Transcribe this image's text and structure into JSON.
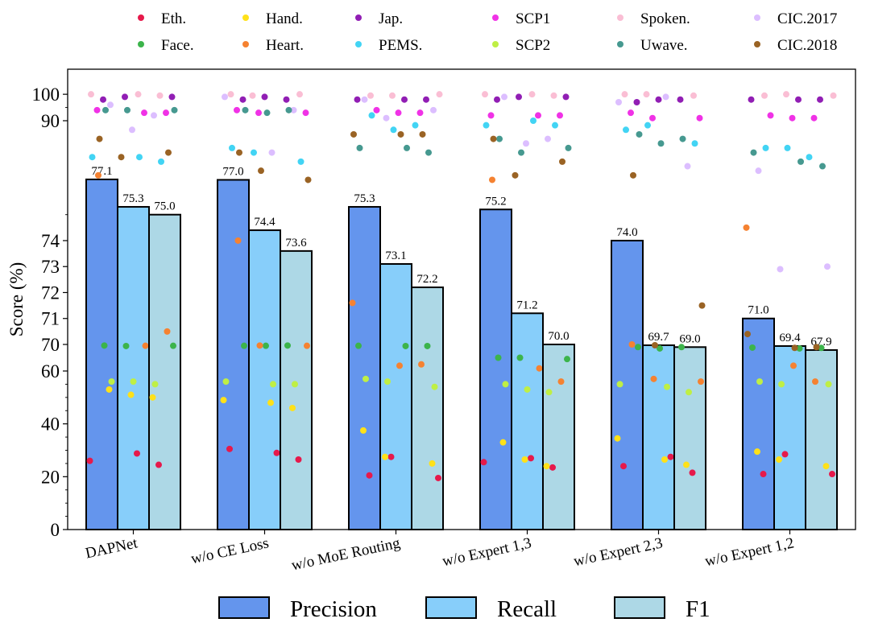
{
  "chart_data": {
    "type": "bar",
    "ylabel": "Score (%)",
    "xlabel": "",
    "title": "",
    "y_segments": [
      {
        "range": [
          0,
          60
        ],
        "ticks": [
          0,
          20,
          40,
          60
        ]
      },
      {
        "range": [
          60,
          70
        ],
        "ticks": []
      },
      {
        "range": [
          70,
          76.2
        ],
        "ticks": [
          70,
          71,
          72,
          73,
          74
        ]
      },
      {
        "range": [
          76.2,
          90
        ],
        "ticks": []
      },
      {
        "range": [
          90,
          104
        ],
        "ticks": [
          90,
          100
        ]
      }
    ],
    "categories": [
      "DAPNet",
      "w/o CE Loss",
      "w/o MoE Routing",
      "w/o Expert 1,3",
      "w/o Expert 2,3",
      "w/o Expert 1,2"
    ],
    "series": [
      {
        "name": "Precision",
        "color": "#6495ed",
        "values": [
          77.1,
          77.0,
          75.3,
          75.2,
          74.0,
          71.0
        ],
        "labels": [
          "77.1",
          "77.0",
          "75.3",
          "75.2",
          "74.0",
          "71.0"
        ]
      },
      {
        "name": "Recall",
        "color": "#87cefa",
        "values": [
          75.3,
          74.4,
          73.1,
          71.2,
          69.7,
          69.4
        ],
        "labels": [
          "75.3",
          "74.4",
          "73.1",
          "71.2",
          "69.7",
          "69.4"
        ]
      },
      {
        "name": "F1",
        "color": "#add8e6",
        "values": [
          75.0,
          73.6,
          72.2,
          70.0,
          69.0,
          67.9
        ],
        "labels": [
          "75.0",
          "73.6",
          "72.2",
          "70.0",
          "69.0",
          "67.9"
        ]
      }
    ],
    "dataset_legend": [
      {
        "name": "Eth.",
        "color": "#e6194b"
      },
      {
        "name": "Hand.",
        "color": "#ffe119"
      },
      {
        "name": "Jap.",
        "color": "#911eb4"
      },
      {
        "name": "SCP1",
        "color": "#f032e6"
      },
      {
        "name": "Spoken.",
        "color": "#fabed4"
      },
      {
        "name": "CIC.2017",
        "color": "#dcbeff"
      },
      {
        "name": "Face.",
        "color": "#3cb44b"
      },
      {
        "name": "Heart.",
        "color": "#f58231"
      },
      {
        "name": "PEMS.",
        "color": "#42d4f4"
      },
      {
        "name": "SCP2",
        "color": "#bfef45"
      },
      {
        "name": "Uwave.",
        "color": "#469990"
      },
      {
        "name": "CIC.2018",
        "color": "#9a6324"
      }
    ],
    "dataset_points": {
      "order": [
        "Eth.",
        "Hand.",
        "Jap.",
        "SCP1",
        "Spoken.",
        "CIC.2017",
        "Face.",
        "Heart.",
        "PEMS.",
        "SCP2",
        "Uwave.",
        "CIC.2018"
      ],
      "values": [
        [
          [
            26,
            53,
            98,
            94,
            100,
            96,
            69.6,
            78,
            82,
            56,
            94,
            86
          ],
          [
            28.8,
            51,
            99,
            93,
            100,
            88,
            69.4,
            69.5,
            82,
            56,
            94,
            82
          ],
          [
            24.5,
            50,
            99,
            93,
            99.5,
            92,
            69.5,
            70.5,
            81,
            55,
            94,
            83
          ]
        ],
        [
          [
            30.5,
            49,
            98,
            94,
            100,
            99,
            69.5,
            74,
            84,
            56,
            94,
            83
          ],
          [
            29,
            48,
            99,
            93,
            99.5,
            83,
            69.5,
            69.6,
            83,
            55,
            93,
            79
          ],
          [
            26.5,
            46,
            98,
            93,
            100,
            94,
            69.6,
            69.5,
            81,
            55,
            94,
            77
          ]
        ],
        [
          [
            20.5,
            37.5,
            98,
            94,
            99.5,
            98,
            69.5,
            71.6,
            92,
            57,
            84,
            87
          ],
          [
            27.5,
            27.5,
            98,
            93,
            99.5,
            91,
            69.4,
            62,
            88,
            56,
            84,
            87
          ],
          [
            19.5,
            25,
            98,
            93,
            100,
            94,
            69.4,
            62.5,
            89,
            54,
            83,
            87
          ]
        ],
        [
          [
            25.5,
            33,
            98,
            92,
            100,
            99,
            65,
            77,
            89,
            55,
            86,
            86
          ],
          [
            27,
            26.5,
            99,
            92,
            100,
            85,
            65,
            61,
            90,
            53,
            83,
            78
          ],
          [
            23.5,
            24,
            99,
            92,
            99.5,
            86,
            64.5,
            56,
            89,
            52,
            84,
            81
          ]
        ],
        [
          [
            24,
            34.5,
            97,
            93,
            100,
            97,
            69,
            70,
            88,
            55,
            87,
            78
          ],
          [
            27.5,
            26.5,
            98,
            91,
            100,
            99,
            68.5,
            57,
            89,
            54,
            85,
            69.7
          ],
          [
            21.5,
            24.5,
            98,
            91,
            99.5,
            80,
            69,
            56,
            85,
            52,
            86,
            71.5
          ]
        ],
        [
          [
            21,
            29.5,
            98,
            92,
            99.5,
            79,
            68.8,
            74.5,
            84,
            56,
            83,
            70.4
          ],
          [
            28.5,
            26.5,
            98,
            91,
            100,
            72.9,
            68.5,
            62,
            84,
            55,
            81,
            68.7
          ],
          [
            21,
            24,
            98,
            91,
            99.5,
            73,
            68.7,
            56,
            82,
            55,
            80,
            69
          ]
        ]
      ]
    }
  }
}
